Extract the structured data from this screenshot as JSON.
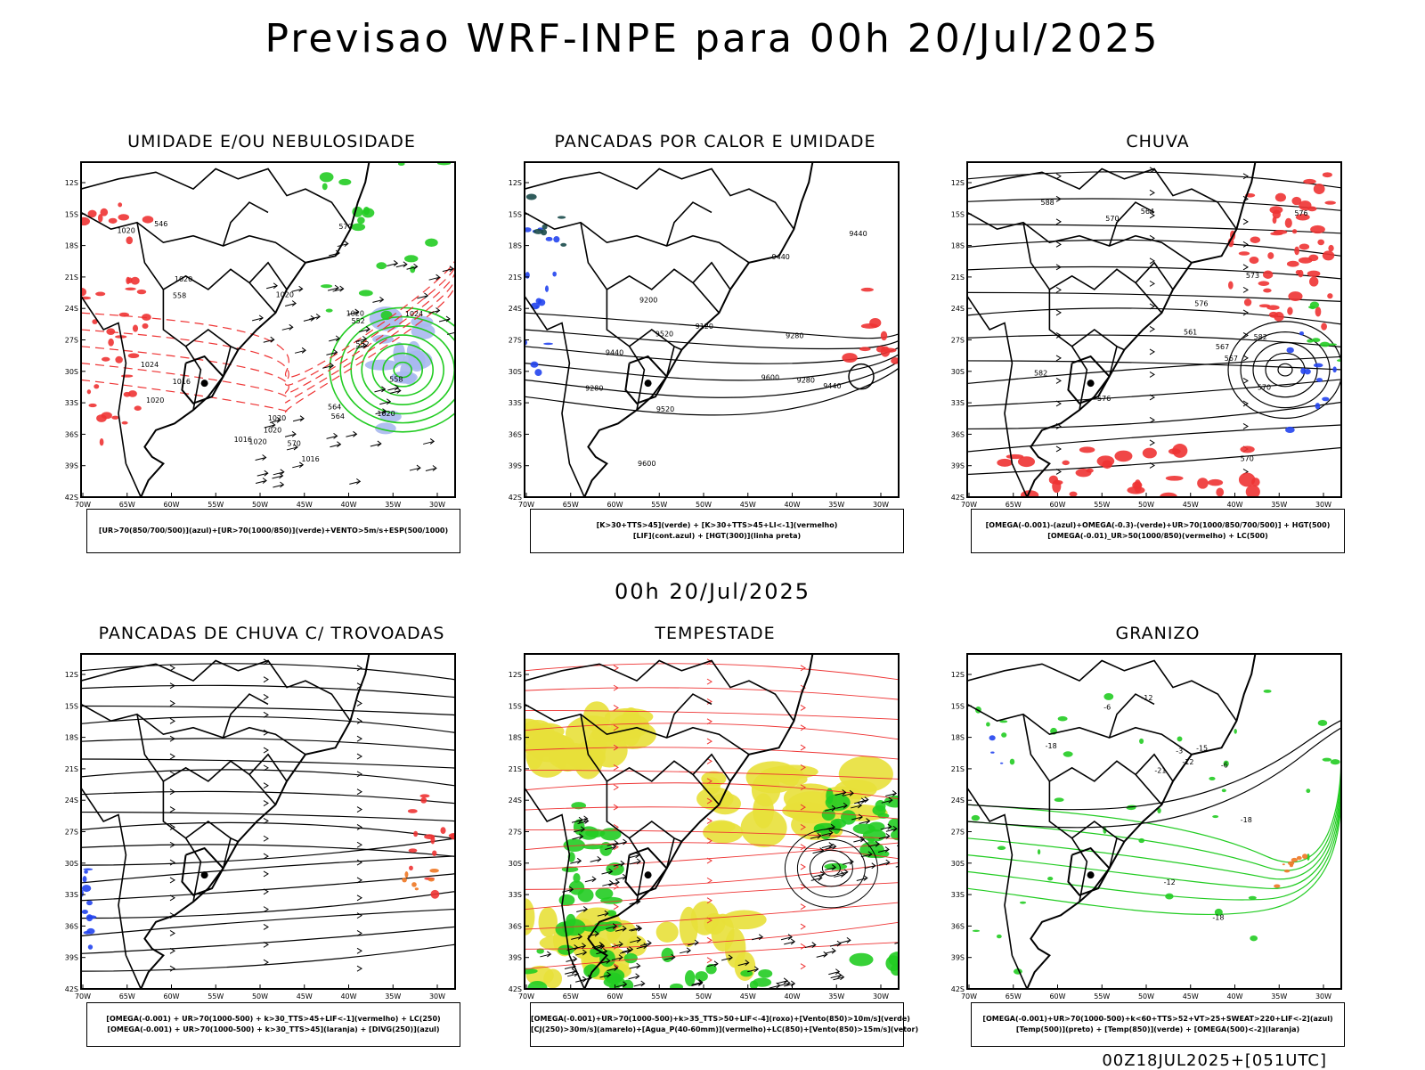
{
  "title": "Previsao WRF-INPE  para 00h 20/Jul/2025",
  "mid_title": "00h 20/Jul/2025",
  "footer": "00Z18JUL2025+[051UTC]",
  "axes": {
    "lat_labels": [
      "12S",
      "15S",
      "18S",
      "21S",
      "24S",
      "27S",
      "30S",
      "33S",
      "36S",
      "39S",
      "42S"
    ],
    "lon_labels": [
      "70W",
      "65W",
      "60W",
      "55W",
      "50W",
      "45W",
      "40W",
      "35W",
      "30W"
    ]
  },
  "colors": {
    "green": "#22cc22",
    "red": "#ee3333",
    "blue": "#2244ee",
    "yellow": "#e8e03a",
    "lightblue": "#a8b8f0",
    "orange": "#ee7722",
    "black": "#000000"
  },
  "panels": [
    {
      "id": "umidade",
      "title": "UMIDADE E/OU NEBULOSIDADE",
      "legend": [
        "[UR>70(850/700/500)](azul)+[UR>70(1000/850)](verde)+VENTO>5m/s+ESP(500/1000)"
      ],
      "labels": [
        "1016",
        "1020",
        "1020",
        "1020",
        "1024",
        "1020",
        "1020",
        "1024",
        "1020",
        "1020",
        "1016",
        "1020",
        "1020",
        "1016",
        "570",
        "570",
        "564",
        "564",
        "558",
        "552",
        "546",
        "552",
        "558"
      ]
    },
    {
      "id": "pancadas_calor",
      "title": "PANCADAS POR CALOR E UMIDADE",
      "legend": [
        "[K>30+TTS>45](verde)  +  [K>30+TTS>45+LI<-1](vermelho)",
        "[LIF](cont.azul)  +  [HGT(300)](linha preta)"
      ],
      "labels": [
        "9600",
        "9600",
        "9520",
        "9520",
        "9440",
        "9440",
        "9440",
        "9440",
        "9280",
        "9280",
        "9200",
        "9280",
        "9120"
      ]
    },
    {
      "id": "chuva",
      "title": "CHUVA",
      "legend": [
        "[OMEGA(-0.001)-(azul)+OMEGA(-0.3)-(verde)+UR>70(1000/850/700/500)]  +  HGT(500)",
        "[OMEGA(-0.01)_UR>50(1000/850)(vermelho)  +  LC(500)"
      ],
      "labels": [
        "588",
        "582",
        "582",
        "576",
        "570",
        "576",
        "573",
        "570",
        "567",
        "576",
        "570",
        "567",
        "564",
        "561"
      ]
    },
    {
      "id": "pancadas_trovoadas",
      "title": "PANCADAS DE CHUVA C/ TROVOADAS",
      "legend": [
        "[OMEGA(-0.001)  +  UR>70(1000-500)  +  k>30_TTS>45+LIF<-1](vermelho)  +  LC(250)",
        "[OMEGA(-0.001)  +  UR>70(1000-500)  +  k>30_TTS>45](laranja)  +  [DIVG(250)](azul)"
      ],
      "labels": []
    },
    {
      "id": "tempestade",
      "title": "TEMPESTADE",
      "legend": [
        "[OMEGA(-0.001)+UR>70(1000-500)+k>35_TTS>50+LIF<-4](roxo)+[Vento(850)>10m/s](verde)",
        "[CJ(250)>30m/s](amarelo)+[Agua_P(40-60mm)](vermelho)+LC(850)+[Vento(850)>15m/s](vetor)"
      ],
      "labels": []
    },
    {
      "id": "granizo",
      "title": "GRANIZO",
      "legend": [
        "[OMEGA(-0.001)+UR>70(1000-500)+k<60+TTS>52+VT>25+SWEAT>220+LIF<-2](azul)",
        "[Temp(500)](preto)  +  [Temp(850)](verde)  +  [OMEGA(500)<-2](laranja)"
      ],
      "labels": [
        "-6",
        "-6",
        "-12",
        "-12",
        "-12",
        "-18",
        "-18",
        "-21",
        "-18",
        "-15",
        "-3"
      ]
    }
  ]
}
